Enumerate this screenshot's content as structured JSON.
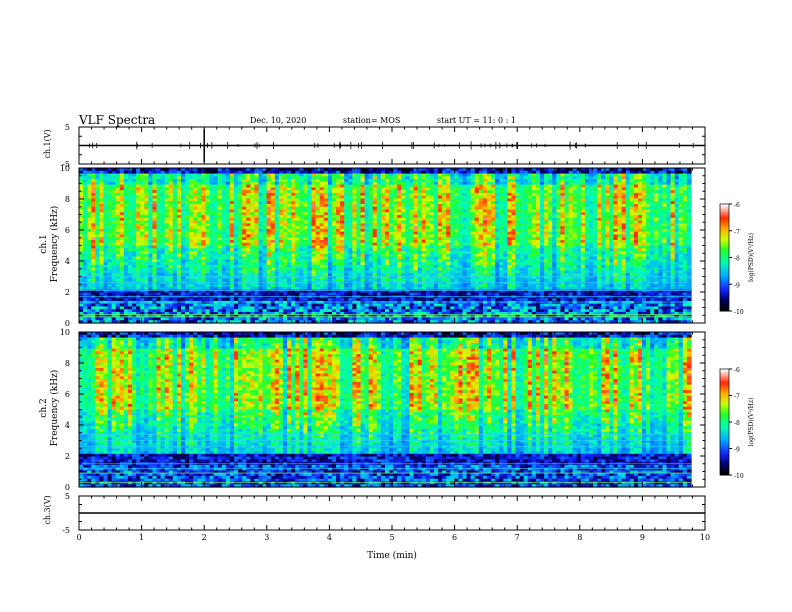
{
  "header": {
    "title": "VLF Spectra",
    "date": "Dec. 10, 2020",
    "station": "station= MOS",
    "start": "start  UT =   11: 0  : 1"
  },
  "colorbar": {
    "label": "log(PSD)(V²/Hz)",
    "ticks": [
      "-6",
      "-7",
      "-8",
      "-9",
      "-10"
    ],
    "colors": [
      "#000000",
      "#1a1aff",
      "#00c8ff",
      "#00ff7a",
      "#c8ff00",
      "#ffb000",
      "#ff2a00",
      "#ffffff"
    ]
  },
  "chart_data": [
    {
      "type": "line",
      "panel": "ch1-waveform",
      "ylabel": "ch.1(V)",
      "ylim": [
        -5,
        5
      ],
      "yticks": [
        "5",
        "-5"
      ],
      "x": [
        0,
        10
      ],
      "y": [
        0,
        0
      ]
    },
    {
      "type": "heatmap",
      "panel": "ch1-spectrogram",
      "title": "ch.1",
      "ylabel": "Frequency (kHz)",
      "xlim": [
        0,
        10
      ],
      "ylim": [
        0,
        10
      ],
      "yticks": [
        "0",
        "2",
        "4",
        "6",
        "8",
        "10"
      ],
      "value_range": [
        -10,
        -6
      ]
    },
    {
      "type": "heatmap",
      "panel": "ch2-spectrogram",
      "title": "ch.2",
      "ylabel": "Frequency (kHz)",
      "xlim": [
        0,
        10
      ],
      "ylim": [
        0,
        10
      ],
      "yticks": [
        "0",
        "2",
        "4",
        "6",
        "8",
        "10"
      ],
      "value_range": [
        -10,
        -6
      ]
    },
    {
      "type": "line",
      "panel": "ch3-waveform",
      "ylabel": "ch.3(V)",
      "ylim": [
        -5,
        5
      ],
      "yticks": [
        "5",
        "-5"
      ],
      "x": [
        0,
        10
      ],
      "y": [
        0,
        0
      ],
      "xlabel": "Time (min)",
      "xticks": [
        "0",
        "1",
        "2",
        "3",
        "4",
        "5",
        "6",
        "7",
        "8",
        "9",
        "10"
      ]
    }
  ]
}
